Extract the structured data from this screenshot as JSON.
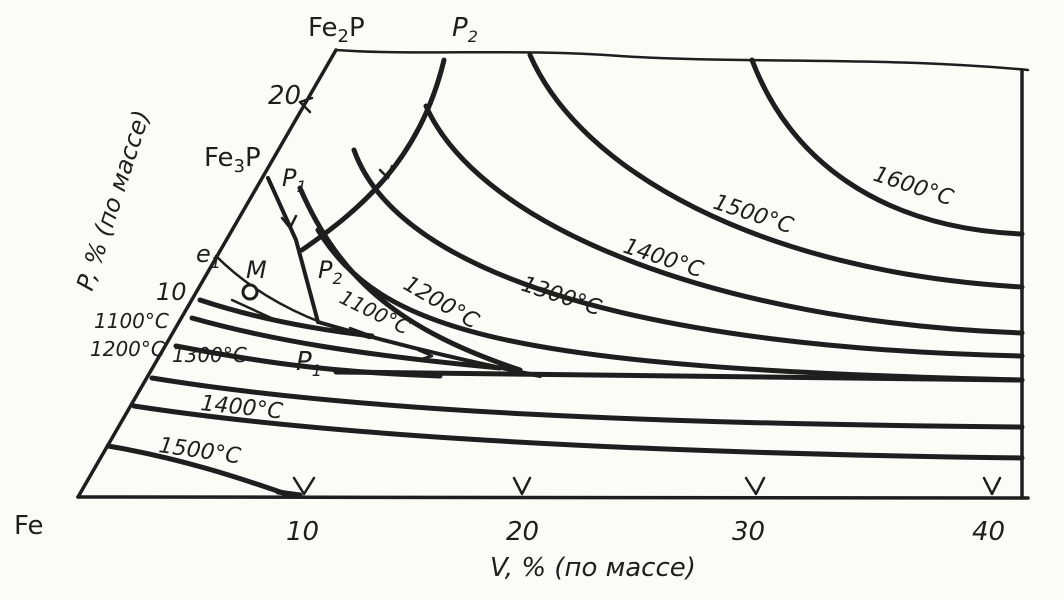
{
  "diagram": {
    "x_axis_label": "V, % (по массе)",
    "y_axis_label": "P, % (по массе)",
    "corner_fe": "Fe",
    "vertex_fe2p": "Fe",
    "vertex_fe2p_sub": "2",
    "vertex_fe2p_tail": "P",
    "vertex_fe3p": "Fe",
    "vertex_fe3p_sub": "3",
    "vertex_fe3p_tail": "P",
    "x_ticks": [
      "10",
      "20",
      "30",
      "40"
    ],
    "y_ticks": [
      "10",
      "20"
    ],
    "points": {
      "e1": "e",
      "e1_sub": "1",
      "M": "M",
      "P1_upper": "P",
      "P1_upper_sub": "1",
      "P2_mid": "P",
      "P2_mid_sub": "2",
      "P1_lower": "P",
      "P1_lower_sub": "1",
      "P2_top": "P",
      "P2_top_sub": "2"
    },
    "isotherms": {
      "right_1100": "1100°C",
      "right_1200": "1200°C",
      "right_1300": "1300°C",
      "right_1400": "1400°C",
      "right_1500": "1500°C",
      "right_1600": "1600°C",
      "left_1100": "1100°C",
      "left_1200": "1200°C",
      "left_1300": "1300°C",
      "low_1400": "1400°C",
      "low_1500": "1500°C"
    }
  }
}
